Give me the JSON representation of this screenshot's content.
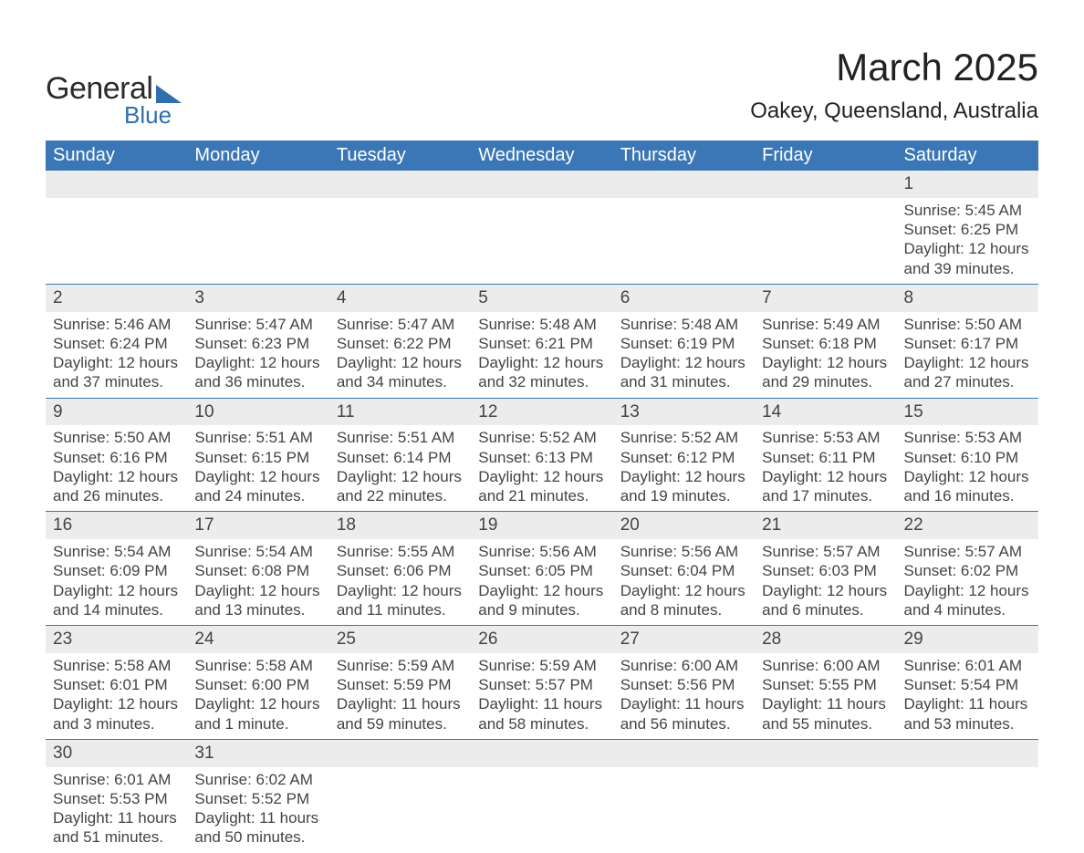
{
  "logo": {
    "line1": "General",
    "line2": "Blue"
  },
  "title": "March 2025",
  "subtitle": "Oakey, Queensland, Australia",
  "colors": {
    "header_bg": "#3b77b6",
    "header_text": "#ffffff",
    "date_bg": "#ececec",
    "rule": "#3b77b6",
    "body_text": "#444444",
    "logo_accent": "#2f6fae"
  },
  "day_names": [
    "Sunday",
    "Monday",
    "Tuesday",
    "Wednesday",
    "Thursday",
    "Friday",
    "Saturday"
  ],
  "weeks": [
    {
      "dates": [
        "",
        "",
        "",
        "",
        "",
        "",
        "1"
      ],
      "cells": [
        "",
        "",
        "",
        "",
        "",
        "",
        "Sunrise: 5:45 AM\nSunset: 6:25 PM\nDaylight: 12 hours and 39 minutes."
      ]
    },
    {
      "dates": [
        "2",
        "3",
        "4",
        "5",
        "6",
        "7",
        "8"
      ],
      "cells": [
        "Sunrise: 5:46 AM\nSunset: 6:24 PM\nDaylight: 12 hours and 37 minutes.",
        "Sunrise: 5:47 AM\nSunset: 6:23 PM\nDaylight: 12 hours and 36 minutes.",
        "Sunrise: 5:47 AM\nSunset: 6:22 PM\nDaylight: 12 hours and 34 minutes.",
        "Sunrise: 5:48 AM\nSunset: 6:21 PM\nDaylight: 12 hours and 32 minutes.",
        "Sunrise: 5:48 AM\nSunset: 6:19 PM\nDaylight: 12 hours and 31 minutes.",
        "Sunrise: 5:49 AM\nSunset: 6:18 PM\nDaylight: 12 hours and 29 minutes.",
        "Sunrise: 5:50 AM\nSunset: 6:17 PM\nDaylight: 12 hours and 27 minutes."
      ]
    },
    {
      "dates": [
        "9",
        "10",
        "11",
        "12",
        "13",
        "14",
        "15"
      ],
      "cells": [
        "Sunrise: 5:50 AM\nSunset: 6:16 PM\nDaylight: 12 hours and 26 minutes.",
        "Sunrise: 5:51 AM\nSunset: 6:15 PM\nDaylight: 12 hours and 24 minutes.",
        "Sunrise: 5:51 AM\nSunset: 6:14 PM\nDaylight: 12 hours and 22 minutes.",
        "Sunrise: 5:52 AM\nSunset: 6:13 PM\nDaylight: 12 hours and 21 minutes.",
        "Sunrise: 5:52 AM\nSunset: 6:12 PM\nDaylight: 12 hours and 19 minutes.",
        "Sunrise: 5:53 AM\nSunset: 6:11 PM\nDaylight: 12 hours and 17 minutes.",
        "Sunrise: 5:53 AM\nSunset: 6:10 PM\nDaylight: 12 hours and 16 minutes."
      ]
    },
    {
      "dates": [
        "16",
        "17",
        "18",
        "19",
        "20",
        "21",
        "22"
      ],
      "cells": [
        "Sunrise: 5:54 AM\nSunset: 6:09 PM\nDaylight: 12 hours and 14 minutes.",
        "Sunrise: 5:54 AM\nSunset: 6:08 PM\nDaylight: 12 hours and 13 minutes.",
        "Sunrise: 5:55 AM\nSunset: 6:06 PM\nDaylight: 12 hours and 11 minutes.",
        "Sunrise: 5:56 AM\nSunset: 6:05 PM\nDaylight: 12 hours and 9 minutes.",
        "Sunrise: 5:56 AM\nSunset: 6:04 PM\nDaylight: 12 hours and 8 minutes.",
        "Sunrise: 5:57 AM\nSunset: 6:03 PM\nDaylight: 12 hours and 6 minutes.",
        "Sunrise: 5:57 AM\nSunset: 6:02 PM\nDaylight: 12 hours and 4 minutes."
      ]
    },
    {
      "dates": [
        "23",
        "24",
        "25",
        "26",
        "27",
        "28",
        "29"
      ],
      "cells": [
        "Sunrise: 5:58 AM\nSunset: 6:01 PM\nDaylight: 12 hours and 3 minutes.",
        "Sunrise: 5:58 AM\nSunset: 6:00 PM\nDaylight: 12 hours and 1 minute.",
        "Sunrise: 5:59 AM\nSunset: 5:59 PM\nDaylight: 11 hours and 59 minutes.",
        "Sunrise: 5:59 AM\nSunset: 5:57 PM\nDaylight: 11 hours and 58 minutes.",
        "Sunrise: 6:00 AM\nSunset: 5:56 PM\nDaylight: 11 hours and 56 minutes.",
        "Sunrise: 6:00 AM\nSunset: 5:55 PM\nDaylight: 11 hours and 55 minutes.",
        "Sunrise: 6:01 AM\nSunset: 5:54 PM\nDaylight: 11 hours and 53 minutes."
      ]
    },
    {
      "dates": [
        "30",
        "31",
        "",
        "",
        "",
        "",
        ""
      ],
      "cells": [
        "Sunrise: 6:01 AM\nSunset: 5:53 PM\nDaylight: 11 hours and 51 minutes.",
        "Sunrise: 6:02 AM\nSunset: 5:52 PM\nDaylight: 11 hours and 50 minutes.",
        "",
        "",
        "",
        "",
        ""
      ]
    }
  ]
}
